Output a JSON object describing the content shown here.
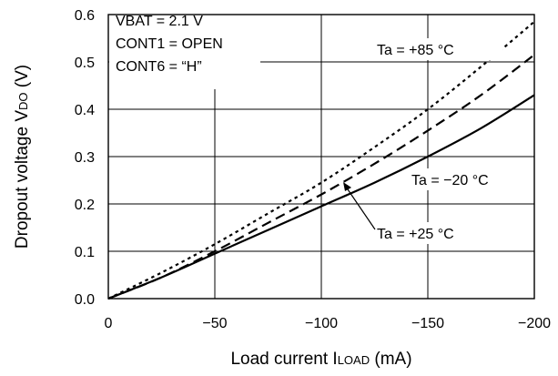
{
  "chart_data": {
    "type": "line",
    "title": "",
    "xlabel": {
      "main": "Load current I",
      "sub": "LOAD",
      "unit": " (mA)"
    },
    "ylabel": {
      "main": "Dropout voltage V",
      "sub": "DO",
      "unit": " (V)"
    },
    "xlim": [
      0,
      -200
    ],
    "ylim": [
      0,
      0.6
    ],
    "x_ticks": [
      0,
      -50,
      -100,
      -150,
      -200
    ],
    "x_tick_labels": [
      "0",
      "−50",
      "−100",
      "−150",
      "−200"
    ],
    "y_ticks": [
      0.0,
      0.1,
      0.2,
      0.3,
      0.4,
      0.5,
      0.6
    ],
    "y_tick_labels": [
      "0.0",
      "0.1",
      "0.2",
      "0.3",
      "0.4",
      "0.5",
      "0.6"
    ],
    "grid": true,
    "conditions": [
      "VBAT = 2.1 V",
      "CONT1 = OPEN",
      "CONT6 = “H”"
    ],
    "series": [
      {
        "name": "Ta = +85 °C",
        "style": "dotted",
        "x": [
          0,
          -25,
          -50,
          -75,
          -100,
          -125,
          -150,
          -175,
          -200
        ],
        "y": [
          0,
          0.055,
          0.115,
          0.18,
          0.245,
          0.32,
          0.4,
          0.49,
          0.585
        ]
      },
      {
        "name": "Ta = −20 °C",
        "style": "dashed",
        "x": [
          0,
          -25,
          -50,
          -75,
          -100,
          -125,
          -150,
          -175,
          -200
        ],
        "y": [
          0,
          0.045,
          0.1,
          0.16,
          0.22,
          0.285,
          0.355,
          0.43,
          0.515
        ]
      },
      {
        "name": "Ta = +25 °C",
        "style": "solid",
        "x": [
          0,
          -25,
          -50,
          -75,
          -100,
          -125,
          -150,
          -175,
          -200
        ],
        "y": [
          0,
          0.045,
          0.095,
          0.145,
          0.195,
          0.245,
          0.3,
          0.36,
          0.43
        ]
      }
    ],
    "annotations": [
      "Ta = +85 °C",
      "Ta = −20 °C",
      "Ta = +25 °C"
    ]
  }
}
